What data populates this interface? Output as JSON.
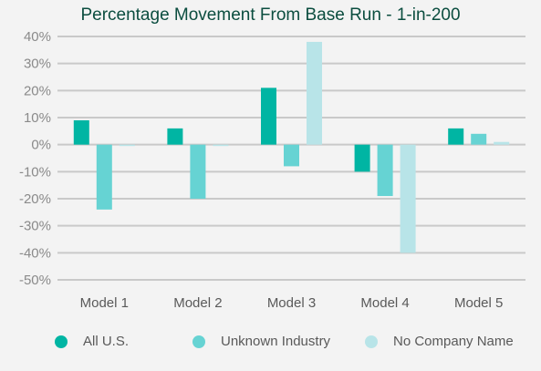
{
  "chart_data": {
    "type": "bar",
    "title": "Percentage Movement From Base Run - 1-in-200",
    "categories": [
      "Model 1",
      "Model 2",
      "Model 3",
      "Model 4",
      "Model 5"
    ],
    "series": [
      {
        "name": "All U.S.",
        "color": "#00b5a3",
        "values": [
          9,
          6,
          21,
          -10,
          6
        ]
      },
      {
        "name": "Unknown Industry",
        "color": "#66d3d3",
        "values": [
          -24,
          -20,
          -8,
          -19,
          4
        ]
      },
      {
        "name": "No Company Name",
        "color": "#b8e4e8",
        "values": [
          0,
          0,
          38,
          -40,
          1
        ]
      }
    ],
    "ylim": [
      -50,
      40
    ],
    "yticks": [
      40,
      30,
      20,
      10,
      0,
      -10,
      -20,
      -30,
      -40,
      -50
    ],
    "ytick_labels": [
      "40%",
      "30%",
      "20%",
      "10%",
      "0%",
      "-10%",
      "-20%",
      "-30%",
      "-40%",
      "-50%"
    ],
    "grid": true,
    "legend_position": "bottom"
  }
}
